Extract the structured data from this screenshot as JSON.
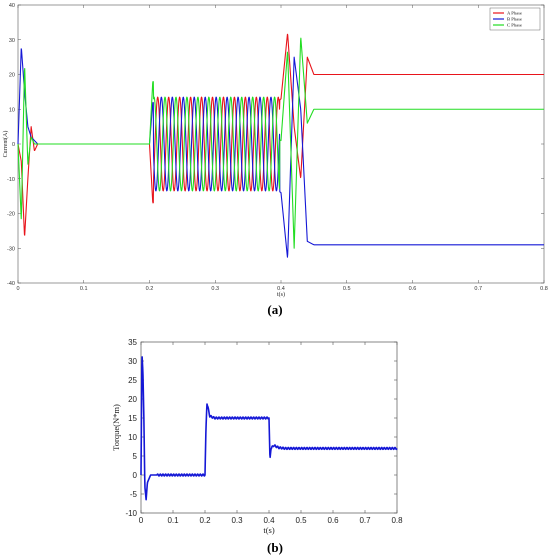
{
  "chart_data": [
    {
      "type": "line",
      "caption": "(a)",
      "xlabel": "t(s)",
      "ylabel": "Current(A)",
      "xlim": [
        0,
        0.8
      ],
      "ylim": [
        -40,
        40
      ],
      "xticks": [
        0,
        0.1,
        0.2,
        0.3,
        0.4,
        0.5,
        0.6,
        0.7,
        0.8
      ],
      "yticks": [
        -40,
        -30,
        -20,
        -10,
        0,
        10,
        20,
        30,
        40
      ],
      "legend_position": "top-right",
      "series": [
        {
          "name": "A Phase",
          "color": "#e8141b",
          "x": [
            0,
            0.005,
            0.01,
            0.015,
            0.02,
            0.025,
            0.03,
            0.2,
            0.205,
            0.4,
            0.41,
            0.42,
            0.43,
            0.44,
            0.45,
            0.5,
            0.8
          ],
          "y": [
            0,
            -5,
            -27,
            -10,
            5,
            -2,
            0,
            0,
            -17,
            13,
            32,
            5,
            -10,
            25,
            20,
            20,
            20
          ]
        },
        {
          "name": "B Phase",
          "color": "#1518d6",
          "x": [
            0,
            0.005,
            0.01,
            0.015,
            0.02,
            0.025,
            0.03,
            0.2,
            0.205,
            0.4,
            0.41,
            0.42,
            0.43,
            0.44,
            0.45,
            0.5,
            0.8
          ],
          "y": [
            0,
            28,
            15,
            5,
            2,
            1,
            0,
            0,
            12,
            -14,
            -33,
            25,
            10,
            -28,
            -29,
            -29,
            -29
          ]
        },
        {
          "name": "C Phase",
          "color": "#22dd22",
          "x": [
            0,
            0.005,
            0.01,
            0.015,
            0.02,
            0.025,
            0.03,
            0.2,
            0.205,
            0.4,
            0.41,
            0.42,
            0.43,
            0.44,
            0.45,
            0.5,
            0.8
          ],
          "y": [
            0,
            -22,
            23,
            -6,
            2,
            0,
            0,
            0,
            18,
            1,
            27,
            -30,
            31,
            6,
            10,
            10,
            10
          ]
        }
      ],
      "annotations": {
        "steady_amplitude_0p2_to_0p4": 13.5,
        "frequency_hz": 60
      }
    },
    {
      "type": "line",
      "caption": "(b)",
      "xlabel": "t(s)",
      "ylabel": "Torque(N*m)",
      "xlim": [
        0,
        0.8
      ],
      "ylim": [
        -10,
        35
      ],
      "xticks": [
        0,
        0.1,
        0.2,
        0.3,
        0.4,
        0.5,
        0.6,
        0.7,
        0.8
      ],
      "yticks": [
        -10,
        -5,
        0,
        5,
        10,
        15,
        20,
        25,
        30,
        35
      ],
      "series": [
        {
          "color": "#1518d6",
          "x": [
            0,
            0.003,
            0.006,
            0.009,
            0.012,
            0.016,
            0.02,
            0.03,
            0.05,
            0.2,
            0.203,
            0.206,
            0.215,
            0.23,
            0.4,
            0.403,
            0.406,
            0.415,
            0.43,
            0.45,
            0.8
          ],
          "y": [
            0,
            32,
            27,
            15,
            -3,
            -6.5,
            -2,
            0,
            0,
            0,
            12,
            19,
            15.5,
            15,
            15,
            4,
            7,
            7.8,
            7.2,
            7,
            7
          ]
        }
      ]
    }
  ]
}
